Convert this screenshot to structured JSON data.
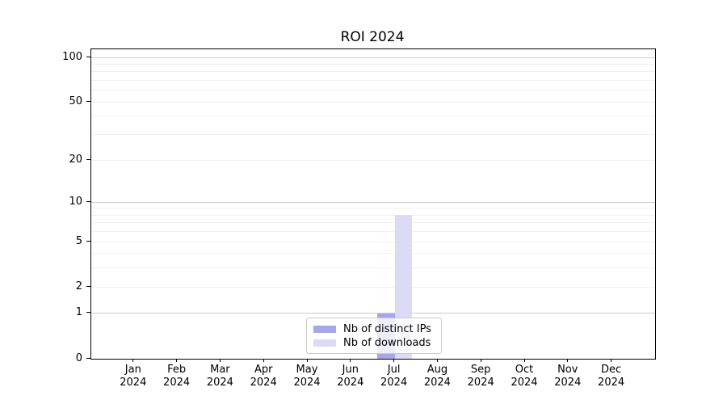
{
  "chart_data": {
    "type": "bar",
    "title": "ROI 2024",
    "categories": [
      "Jan 2024",
      "Feb 2024",
      "Mar 2024",
      "Apr 2024",
      "May 2024",
      "Jun 2024",
      "Jul 2024",
      "Aug 2024",
      "Sep 2024",
      "Oct 2024",
      "Nov 2024",
      "Dec 2024"
    ],
    "series": [
      {
        "name": "Nb of distinct IPs",
        "color": "#a5a6ec",
        "values": [
          0,
          0,
          0,
          0,
          0,
          0,
          1,
          0,
          0,
          0,
          0,
          0
        ]
      },
      {
        "name": "Nb of downloads",
        "color": "#dbdbf6",
        "values": [
          0,
          0,
          0,
          0,
          0,
          0,
          8,
          0,
          0,
          0,
          0,
          0
        ]
      }
    ],
    "xlabel": "",
    "ylabel": "",
    "yscale": "log1p",
    "y_ticks": [
      0,
      1,
      2,
      5,
      10,
      20,
      50,
      100
    ],
    "ylim": [
      0,
      113.5
    ],
    "grid": "horizontal",
    "legend_position": "lower center inside"
  },
  "legend": {
    "item1": "Nb of distinct IPs",
    "item2": "Nb of downloads"
  }
}
